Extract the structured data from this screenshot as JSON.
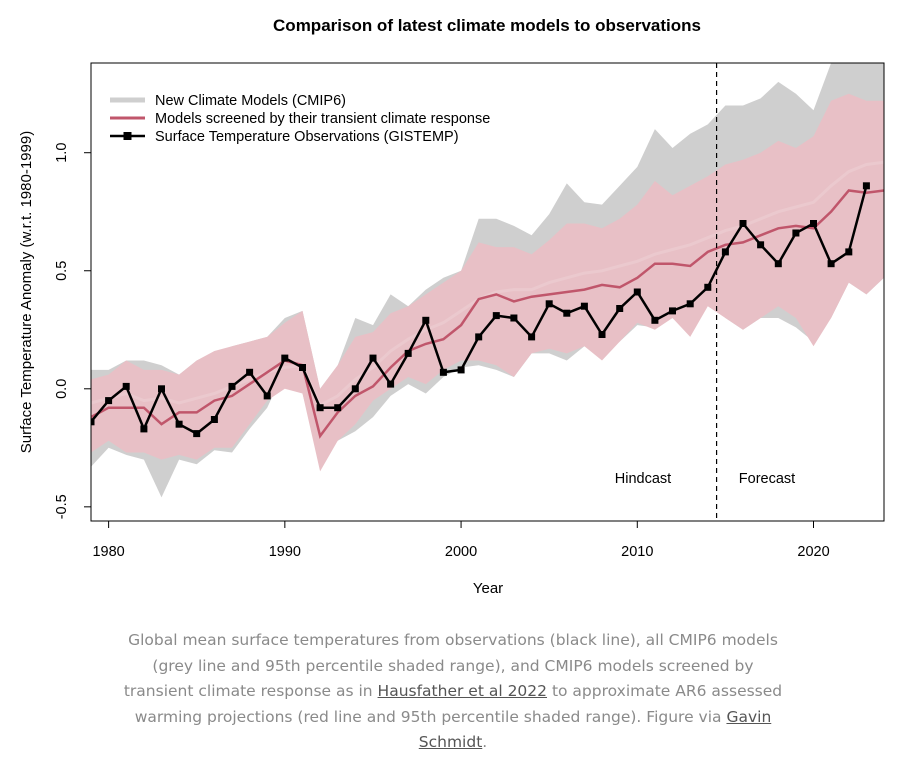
{
  "chart_data": {
    "type": "line",
    "title": "Comparison of latest climate models to observations",
    "xlabel": "Year",
    "ylabel": "Surface Temperature Anomaly (w.r.t. 1980-1999)",
    "xlim": [
      1979,
      2024
    ],
    "ylim": [
      -0.56,
      1.38
    ],
    "xticks": [
      "1980",
      "1990",
      "2000",
      "2010",
      "2020"
    ],
    "xtick_values": [
      1980,
      1990,
      2000,
      2010,
      2020
    ],
    "yticks": [
      "-0.5",
      "0.0",
      "0.5",
      "1.0"
    ],
    "ytick_values": [
      -0.5,
      0,
      0.5,
      1.0
    ],
    "grid": false,
    "legend_position": "top-left",
    "legend": [
      "New Climate Models (CMIP6)",
      "Models screened by their transient climate response",
      "Surface Temperature Observations (GISTEMP)"
    ],
    "annotations": {
      "split_year": 2014.5,
      "left_label": "Hindcast",
      "right_label": "Forecast"
    },
    "colors": {
      "cmip6": "#cfcfcf",
      "screened_band": "#e8c0c6",
      "screened_line": "#c0566b",
      "observations": "#000000"
    },
    "x": [
      1979,
      1980,
      1981,
      1982,
      1983,
      1984,
      1985,
      1986,
      1987,
      1988,
      1989,
      1990,
      1991,
      1992,
      1993,
      1994,
      1995,
      1996,
      1997,
      1998,
      1999,
      2000,
      2001,
      2002,
      2003,
      2004,
      2005,
      2006,
      2007,
      2008,
      2009,
      2010,
      2011,
      2012,
      2013,
      2014,
      2015,
      2016,
      2017,
      2018,
      2019,
      2020,
      2021,
      2022,
      2023,
      2024
    ],
    "series": [
      {
        "name": "New Climate Models (CMIP6)",
        "kind": "band",
        "upper": [
          0.08,
          0.08,
          0.12,
          0.12,
          0.1,
          0.06,
          0.12,
          0.15,
          0.18,
          0.2,
          0.22,
          0.3,
          0.33,
          0.0,
          0.1,
          0.3,
          0.27,
          0.4,
          0.35,
          0.42,
          0.47,
          0.5,
          0.72,
          0.72,
          0.69,
          0.65,
          0.74,
          0.87,
          0.79,
          0.78,
          0.86,
          0.94,
          1.1,
          1.02,
          1.08,
          1.12,
          1.2,
          1.2,
          1.23,
          1.3,
          1.25,
          1.18,
          1.38,
          1.38,
          1.38,
          1.38
        ],
        "lower": [
          -0.33,
          -0.25,
          -0.28,
          -0.3,
          -0.46,
          -0.3,
          -0.32,
          -0.26,
          -0.27,
          -0.17,
          -0.08,
          0.08,
          -0.02,
          -0.3,
          -0.22,
          -0.18,
          -0.12,
          -0.03,
          0.02,
          -0.02,
          0.05,
          0.09,
          0.1,
          0.08,
          0.05,
          0.15,
          0.15,
          0.12,
          0.18,
          0.15,
          0.2,
          0.27,
          0.26,
          0.3,
          0.24,
          0.37,
          0.3,
          0.25,
          0.3,
          0.3,
          0.26,
          0.2,
          0.3,
          0.45,
          0.4,
          0.47
        ]
      },
      {
        "name": "Models screened by their transient climate response",
        "kind": "band",
        "upper": [
          0.04,
          0.06,
          0.12,
          0.08,
          0.08,
          0.06,
          0.12,
          0.16,
          0.18,
          0.2,
          0.22,
          0.28,
          0.33,
          0.0,
          0.1,
          0.22,
          0.24,
          0.32,
          0.35,
          0.4,
          0.45,
          0.5,
          0.62,
          0.6,
          0.6,
          0.57,
          0.63,
          0.7,
          0.7,
          0.68,
          0.72,
          0.78,
          0.88,
          0.82,
          0.86,
          0.9,
          0.95,
          0.97,
          1.0,
          1.05,
          1.02,
          1.07,
          1.22,
          1.25,
          1.22,
          1.22
        ],
        "lower": [
          -0.27,
          -0.22,
          -0.27,
          -0.27,
          -0.3,
          -0.28,
          -0.3,
          -0.25,
          -0.25,
          -0.15,
          -0.05,
          0.0,
          -0.02,
          -0.35,
          -0.22,
          -0.15,
          -0.05,
          0.0,
          0.05,
          0.02,
          0.08,
          0.12,
          0.12,
          0.1,
          0.05,
          0.15,
          0.17,
          0.15,
          0.18,
          0.12,
          0.2,
          0.28,
          0.25,
          0.3,
          0.22,
          0.35,
          0.3,
          0.25,
          0.3,
          0.35,
          0.3,
          0.18,
          0.3,
          0.45,
          0.4,
          0.47
        ]
      },
      {
        "name": "",
        "kind": "line",
        "values": [
          -0.06,
          -0.04,
          -0.02,
          -0.05,
          -0.04,
          -0.06,
          -0.04,
          -0.02,
          0.01,
          0.04,
          0.07,
          0.09,
          0.1,
          -0.07,
          -0.03,
          0.04,
          0.09,
          0.16,
          0.21,
          0.25,
          0.28,
          0.33,
          0.38,
          0.41,
          0.42,
          0.42,
          0.45,
          0.47,
          0.49,
          0.5,
          0.52,
          0.54,
          0.57,
          0.59,
          0.61,
          0.64,
          0.67,
          0.69,
          0.72,
          0.75,
          0.77,
          0.79,
          0.86,
          0.92,
          0.95,
          0.96
        ]
      },
      {
        "name": "Models screened by their transient climate response",
        "kind": "line",
        "values": [
          -0.12,
          -0.08,
          -0.08,
          -0.08,
          -0.15,
          -0.1,
          -0.1,
          -0.05,
          -0.03,
          0.02,
          0.07,
          0.12,
          0.1,
          -0.2,
          -0.1,
          -0.03,
          0.01,
          0.09,
          0.16,
          0.19,
          0.21,
          0.27,
          0.38,
          0.4,
          0.37,
          0.39,
          0.4,
          0.41,
          0.42,
          0.44,
          0.43,
          0.47,
          0.53,
          0.53,
          0.52,
          0.58,
          0.61,
          0.62,
          0.65,
          0.68,
          0.69,
          0.68,
          0.75,
          0.84,
          0.83,
          0.84
        ]
      },
      {
        "name": "Surface Temperature Observations (GISTEMP)",
        "kind": "line_markers",
        "x": [
          1979,
          1980,
          1981,
          1982,
          1983,
          1984,
          1985,
          1986,
          1987,
          1988,
          1989,
          1990,
          1991,
          1992,
          1993,
          1994,
          1995,
          1996,
          1997,
          1998,
          1999,
          2000,
          2001,
          2002,
          2003,
          2004,
          2005,
          2006,
          2007,
          2008,
          2009,
          2010,
          2011,
          2012,
          2013,
          2014,
          2015,
          2016,
          2017,
          2018,
          2019,
          2020,
          2021,
          2022,
          2023
        ],
        "values": [
          -0.14,
          -0.05,
          0.01,
          -0.17,
          0.0,
          -0.15,
          -0.19,
          -0.13,
          0.01,
          0.07,
          -0.03,
          0.13,
          0.09,
          -0.08,
          -0.08,
          0.0,
          0.13,
          0.02,
          0.15,
          0.29,
          0.07,
          0.08,
          0.22,
          0.31,
          0.3,
          0.22,
          0.36,
          0.32,
          0.35,
          0.23,
          0.34,
          0.41,
          0.29,
          0.33,
          0.36,
          0.43,
          0.58,
          0.7,
          0.61,
          0.53,
          0.66,
          0.7,
          0.53,
          0.58,
          0.86
        ]
      }
    ]
  },
  "caption": {
    "part1": "Global mean surface temperatures from observations (black line), all CMIP6 models (grey line and 95th percentile shaded range), and CMIP6 models screened by transient climate response as in ",
    "link1": "Hausfather et al 2022",
    "part2": " to approximate AR6 assessed warming projections (red line and 95th percentile shaded range). Figure via ",
    "link2": "Gavin Schmidt",
    "part3": "."
  }
}
